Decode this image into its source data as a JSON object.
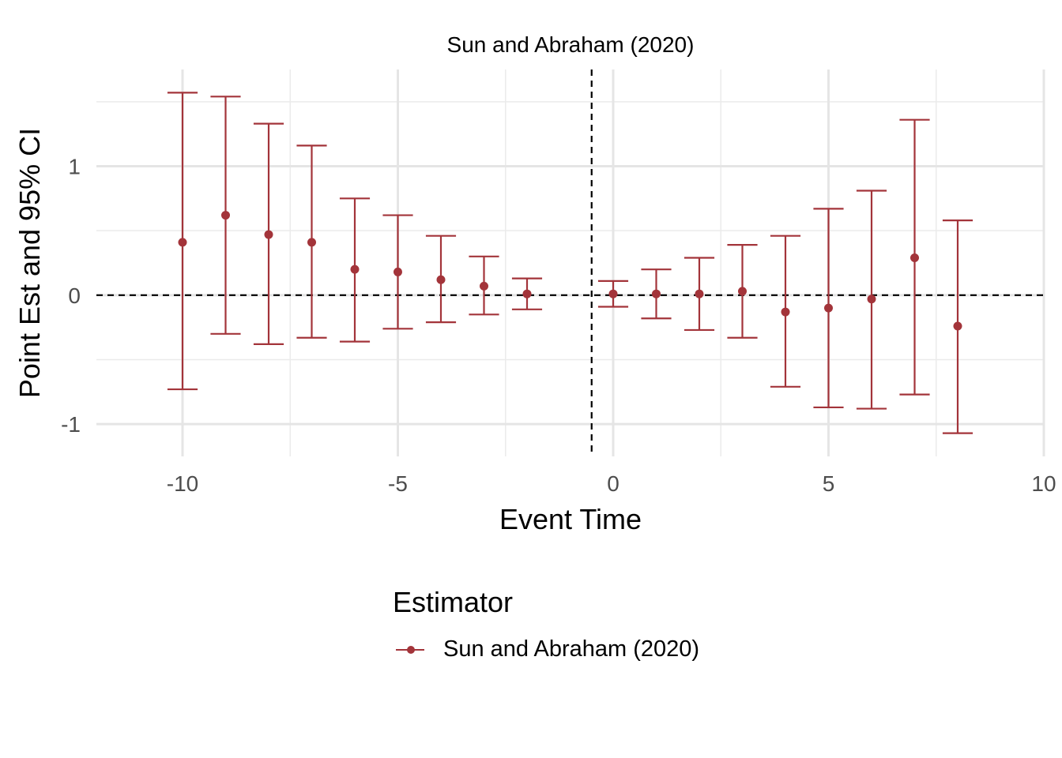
{
  "chart_data": {
    "type": "scatter",
    "title": "Sun and Abraham (2020)",
    "xlabel": "Event Time",
    "ylabel": "Point Est and 95% CI",
    "xlim": [
      -12,
      10
    ],
    "ylim": [
      -1.25,
      1.75
    ],
    "xticks": [
      -10,
      -5,
      0,
      5,
      10
    ],
    "yticks": [
      -1,
      0,
      1
    ],
    "grid": true,
    "reference_lines": {
      "x": -0.5,
      "y": 0
    },
    "legend": {
      "title": "Estimator",
      "position": "bottom"
    },
    "series": [
      {
        "name": "Sun and Abraham (2020)",
        "color": "#a3343a",
        "points": [
          {
            "x": -10,
            "y": 0.41,
            "lo": -0.73,
            "hi": 1.57
          },
          {
            "x": -9,
            "y": 0.62,
            "lo": -0.3,
            "hi": 1.54
          },
          {
            "x": -8,
            "y": 0.47,
            "lo": -0.38,
            "hi": 1.33
          },
          {
            "x": -7,
            "y": 0.41,
            "lo": -0.33,
            "hi": 1.16
          },
          {
            "x": -6,
            "y": 0.2,
            "lo": -0.36,
            "hi": 0.75
          },
          {
            "x": -5,
            "y": 0.18,
            "lo": -0.26,
            "hi": 0.62
          },
          {
            "x": -4,
            "y": 0.12,
            "lo": -0.21,
            "hi": 0.46
          },
          {
            "x": -3,
            "y": 0.07,
            "lo": -0.15,
            "hi": 0.3
          },
          {
            "x": -2,
            "y": 0.01,
            "lo": -0.11,
            "hi": 0.13
          },
          {
            "x": 0,
            "y": 0.01,
            "lo": -0.09,
            "hi": 0.11
          },
          {
            "x": 1,
            "y": 0.01,
            "lo": -0.18,
            "hi": 0.2
          },
          {
            "x": 2,
            "y": 0.01,
            "lo": -0.27,
            "hi": 0.29
          },
          {
            "x": 3,
            "y": 0.03,
            "lo": -0.33,
            "hi": 0.39
          },
          {
            "x": 4,
            "y": -0.13,
            "lo": -0.71,
            "hi": 0.46
          },
          {
            "x": 5,
            "y": -0.1,
            "lo": -0.87,
            "hi": 0.67
          },
          {
            "x": 6,
            "y": -0.03,
            "lo": -0.88,
            "hi": 0.81
          },
          {
            "x": 7,
            "y": 0.29,
            "lo": -0.77,
            "hi": 1.36
          },
          {
            "x": 8,
            "y": -0.24,
            "lo": -1.07,
            "hi": 0.58
          }
        ]
      }
    ]
  }
}
